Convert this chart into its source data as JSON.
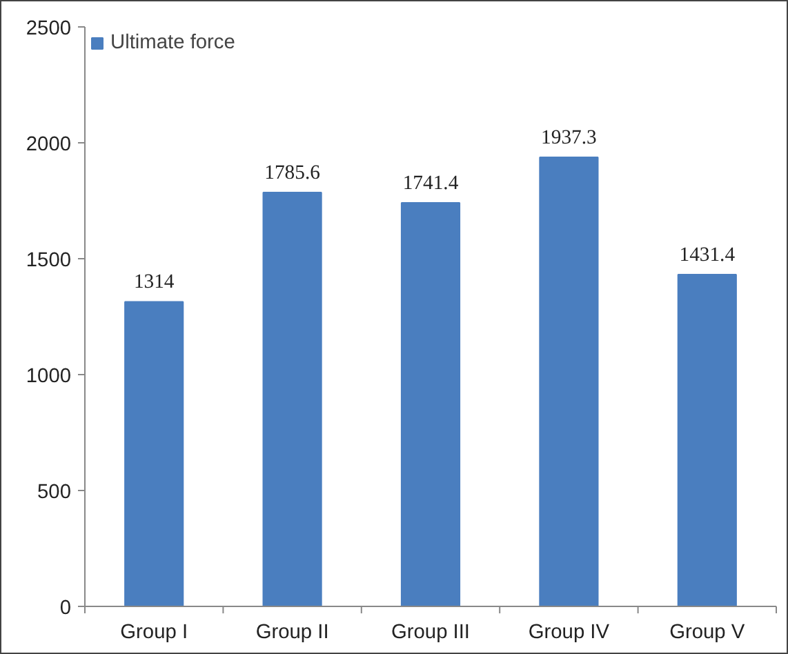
{
  "chart_data": {
    "type": "bar",
    "categories": [
      "Group I",
      "Group II",
      "Group III",
      "Group IV",
      "Group V"
    ],
    "series": [
      {
        "name": "Ultimate force",
        "color": "#4a7ebf",
        "values": [
          1314,
          1785.6,
          1741.4,
          1937.3,
          1431.4
        ]
      }
    ],
    "ylim": [
      0,
      2500
    ],
    "yticks": [
      0,
      500,
      1000,
      1500,
      2000,
      2500
    ],
    "grid": false,
    "legend": "top left",
    "data_labels": true
  }
}
